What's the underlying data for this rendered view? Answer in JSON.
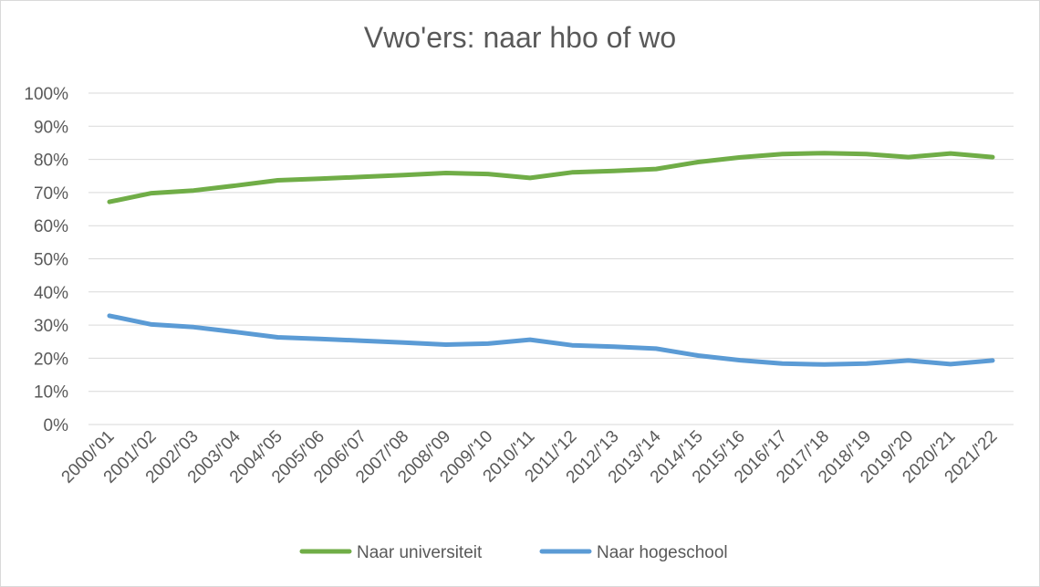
{
  "chart_data": {
    "type": "line",
    "title": "Vwo'ers: naar hbo of wo",
    "xlabel": "",
    "ylabel": "",
    "categories": [
      "2000/'01",
      "2001/'02",
      "2002/'03",
      "2003/'04",
      "2004/'05",
      "2005/'06",
      "2006/'07",
      "2007/'08",
      "2008/'09",
      "2009/'10",
      "2010/'11",
      "2011/'12",
      "2012/'13",
      "2013/'14",
      "2014/'15",
      "2015/'16",
      "2016/'17",
      "2017/'18",
      "2018/'19",
      "2019/'20",
      "2020/'21",
      "2021/'22"
    ],
    "y_ticks": [
      "0%",
      "10%",
      "20%",
      "30%",
      "40%",
      "50%",
      "60%",
      "70%",
      "80%",
      "90%",
      "100%"
    ],
    "ylim": [
      0,
      100
    ],
    "grid": true,
    "legend_position": "bottom",
    "series": [
      {
        "name": "Naar universiteit",
        "color": "#70ad47",
        "values": [
          67.2,
          69.8,
          70.6,
          72.1,
          73.7,
          74.2,
          74.7,
          75.3,
          75.9,
          75.6,
          74.4,
          76.1,
          76.5,
          77.1,
          79.2,
          80.6,
          81.6,
          81.9,
          81.6,
          80.7,
          81.8,
          80.7
        ]
      },
      {
        "name": "Naar hogeschool",
        "color": "#5b9bd5",
        "values": [
          32.8,
          30.2,
          29.4,
          27.9,
          26.3,
          25.8,
          25.3,
          24.7,
          24.1,
          24.4,
          25.6,
          23.9,
          23.5,
          22.9,
          20.8,
          19.4,
          18.4,
          18.1,
          18.4,
          19.3,
          18.2,
          19.3
        ]
      }
    ]
  }
}
